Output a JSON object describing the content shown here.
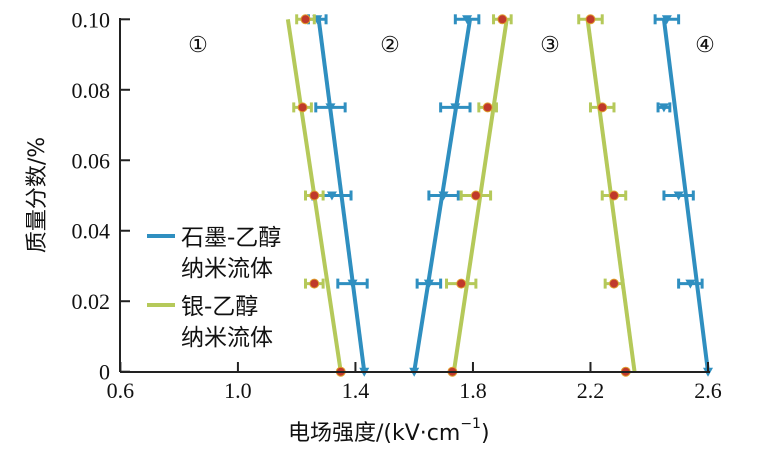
{
  "chart_data": {
    "type": "line",
    "title": "",
    "xlabel": "电场强度/(kV·cm",
    "xlabel_sup": "−1",
    "xlabel_close": ")",
    "ylabel": "质量分数/%",
    "xlim": [
      0.6,
      2.6
    ],
    "ylim": [
      0,
      0.1
    ],
    "xticks": [
      "0.6",
      "1.0",
      "1.4",
      "1.8",
      "2.2",
      "2.6"
    ],
    "yticks": [
      "0",
      "0.02",
      "0.04",
      "0.06",
      "0.08",
      "0.10"
    ],
    "grid": false,
    "legend_position": "middle-left",
    "region_labels": [
      "①",
      "②",
      "③",
      "④"
    ],
    "legend": [
      {
        "line1": "石墨-乙醇",
        "line2": "纳米流体",
        "color": "#2f8fc0"
      },
      {
        "line1": "银-乙醇",
        "line2": "纳米流体",
        "color": "#b5c95a"
      }
    ],
    "y_points": [
      0,
      0.025,
      0.05,
      0.075,
      0.1
    ],
    "series": [
      {
        "group": "石墨-乙醇纳米流体",
        "region": "①",
        "color": "#2f8fc0",
        "marker": "triangle-down",
        "x": [
          1.43,
          1.39,
          1.32,
          1.315,
          1.27
        ],
        "xerr": [
          0.0,
          0.05,
          0.065,
          0.05,
          0.03
        ],
        "fit": [
          1.43,
          1.275
        ]
      },
      {
        "group": "银-乙醇纳米流体",
        "region": "①",
        "color": "#b5c95a",
        "marker": "circle",
        "x": [
          1.35,
          1.26,
          1.26,
          1.22,
          1.23
        ],
        "xerr": [
          0.0,
          0.03,
          0.03,
          0.03,
          0.03
        ],
        "fit": [
          1.35,
          1.17
        ]
      },
      {
        "group": "石墨-乙醇纳米流体",
        "region": "②",
        "color": "#2f8fc0",
        "marker": "triangle-down",
        "x": [
          1.6,
          1.65,
          1.7,
          1.74,
          1.78
        ],
        "xerr": [
          0.0,
          0.04,
          0.05,
          0.05,
          0.04
        ],
        "fit": [
          1.6,
          1.79
        ]
      },
      {
        "group": "银-乙醇纳米流体",
        "region": "②",
        "color": "#b5c95a",
        "marker": "circle",
        "x": [
          1.73,
          1.76,
          1.81,
          1.85,
          1.9
        ],
        "xerr": [
          0.0,
          0.05,
          0.05,
          0.03,
          0.03
        ],
        "fit": [
          1.735,
          1.915
        ]
      },
      {
        "group": "银-乙醇纳米流体",
        "region": "③",
        "color": "#b5c95a",
        "marker": "circle",
        "x": [
          2.32,
          2.28,
          2.28,
          2.24,
          2.2
        ],
        "xerr": [
          0.0,
          0.03,
          0.04,
          0.04,
          0.04
        ],
        "fit": [
          2.35,
          2.19
        ]
      },
      {
        "group": "石墨-乙醇纳米流体",
        "region": "④",
        "color": "#2f8fc0",
        "marker": "triangle-down",
        "x": [
          2.6,
          2.54,
          2.5,
          2.45,
          2.46
        ],
        "xerr": [
          0.0,
          0.04,
          0.05,
          0.02,
          0.04
        ],
        "fit": [
          2.6,
          2.45
        ]
      }
    ]
  }
}
